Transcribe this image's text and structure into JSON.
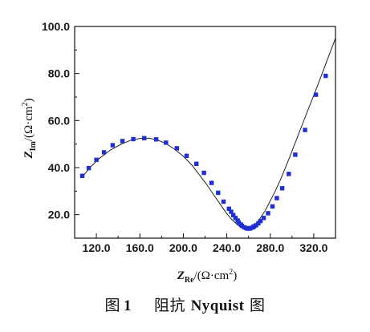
{
  "chart_data": {
    "type": "scatter",
    "xlim": [
      100,
      340
    ],
    "ylim": [
      10,
      100
    ],
    "x_ticks": [
      120,
      160,
      200,
      240,
      280,
      320
    ],
    "x_tick_labels": [
      "120.0",
      "160.0",
      "200.0",
      "240.0",
      "280.0",
      "320.0"
    ],
    "y_ticks": [
      20,
      40,
      60,
      80,
      100
    ],
    "y_tick_labels": [
      "20.0",
      "40.0",
      "60.0",
      "80.0",
      "100.0"
    ],
    "xlabel": {
      "main": "Z",
      "sub": "Re",
      "unit": "/(Ω·cm",
      "sup": "2",
      "close": ")"
    },
    "ylabel": {
      "main": "Z",
      "sub": "Im",
      "unit": "/(Ω·cm",
      "sup": "2",
      "close": ")"
    },
    "grid": false,
    "marker_color": "#1f2fd6",
    "line_color": "#222222",
    "fit_line": {
      "x": [
        107,
        114,
        123,
        133,
        143,
        152,
        160,
        168,
        176,
        184,
        192,
        200,
        208,
        215,
        222,
        228,
        234,
        239,
        244,
        249,
        253,
        256,
        259,
        262,
        265,
        268,
        271,
        275,
        279,
        284,
        290,
        297,
        305,
        313,
        322,
        331,
        340
      ],
      "y": [
        36,
        40,
        44,
        47.5,
        50,
        51.7,
        52.4,
        52.5,
        51.8,
        50.2,
        47.8,
        44.8,
        41,
        36.8,
        32.5,
        28.4,
        24.4,
        21,
        18.2,
        16,
        14.6,
        14.1,
        14.1,
        14.5,
        15.4,
        16.8,
        18.7,
        21.5,
        25,
        29.5,
        35.5,
        43.5,
        53,
        62.5,
        73,
        84,
        95
      ]
    },
    "points": {
      "x": [
        107,
        113,
        120,
        127,
        135,
        144,
        154,
        164,
        175,
        184,
        194,
        203,
        212,
        219,
        226,
        232,
        237,
        242,
        244,
        246,
        248,
        250,
        251,
        253,
        254,
        256,
        258,
        259,
        261,
        262,
        264,
        265,
        267,
        269,
        271,
        274,
        278,
        282,
        286,
        291,
        297,
        303,
        312,
        322,
        331
      ],
      "y": [
        36.5,
        39.8,
        43.3,
        46.5,
        49.5,
        51.3,
        52.1,
        52.5,
        52,
        50.6,
        48.2,
        45,
        41.6,
        37.8,
        33.5,
        29.3,
        25.5,
        22.5,
        21.2,
        19.8,
        18.6,
        17.5,
        16.6,
        15.8,
        15.2,
        14.6,
        14.3,
        14.1,
        14.1,
        14.3,
        14.6,
        15,
        15.5,
        16.3,
        17.3,
        18.6,
        20.6,
        23.5,
        27,
        31.2,
        37.3,
        45.5,
        56,
        71,
        79
      ]
    }
  },
  "caption": {
    "label": "图",
    "number": "1",
    "text_cn": "阻抗",
    "text_en": "Nyquist",
    "text_tail": "图"
  }
}
